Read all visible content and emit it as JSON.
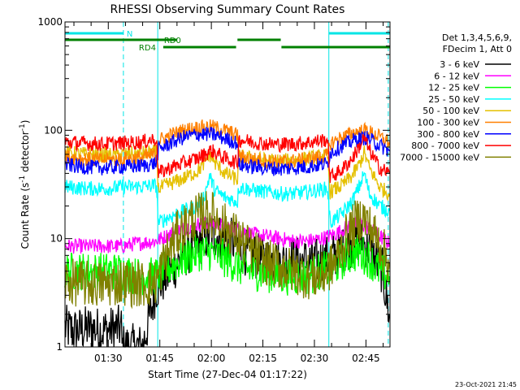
{
  "chart_data": {
    "type": "line",
    "title": "RHESSI Observing Summary Count Rates",
    "xlabel": "Start Time (27-Dec-04 01:17:22)",
    "ylabel_main": "Count Rate (s",
    "ylabel_sup1": "-1",
    "ylabel_mid": " detector",
    "ylabel_sup2": "-1",
    "ylabel_end": ")",
    "y_scale": "log",
    "ylim": [
      1,
      1000
    ],
    "xlim_minutes": [
      77.4,
      172.0
    ],
    "x_ticks": [
      {
        "minute": 90,
        "label": "01:30"
      },
      {
        "minute": 105,
        "label": "01:45"
      },
      {
        "minute": 120,
        "label": "02:00"
      },
      {
        "minute": 135,
        "label": "02:15"
      },
      {
        "minute": 150,
        "label": "02:30"
      },
      {
        "minute": 165,
        "label": "02:45"
      }
    ],
    "y_ticks": [
      {
        "value": 1,
        "label": "1"
      },
      {
        "value": 10,
        "label": "10"
      },
      {
        "value": 100,
        "label": "100"
      },
      {
        "value": 1000,
        "label": "1000"
      }
    ],
    "legend_header": [
      "Det 1,3,4,5,6,9,",
      "FDecim 1, Att 0"
    ],
    "legend_placement": "right",
    "footer_timestamp": "23-Oct-2021 21:45",
    "colors": {
      "axis": "#000000",
      "night": "#00e5e5",
      "saa": "#008000"
    },
    "intervals": {
      "night": [
        {
          "label": "N",
          "start": 77.4,
          "end": 94.4
        },
        {
          "label": "",
          "start": 154.2,
          "end": 172.0
        }
      ],
      "rd0": [
        {
          "label": "RD0",
          "start": 77.4,
          "end": 110.0
        },
        {
          "label": "",
          "start": 127.6,
          "end": 140.2
        }
      ],
      "rd4": [
        {
          "label": "RD4",
          "start": 106.0,
          "end": 127.2
        },
        {
          "label": "",
          "start": 140.4,
          "end": 172.0
        }
      ]
    },
    "vlines": [
      {
        "minute": 77.4,
        "style": "solid"
      },
      {
        "minute": 94.4,
        "style": "dashed"
      },
      {
        "minute": 104.4,
        "style": "solid"
      },
      {
        "minute": 154.2,
        "style": "solid"
      },
      {
        "minute": 171.5,
        "style": "dashed"
      }
    ],
    "series": [
      {
        "name": "3 - 6 keV",
        "color": "#000000",
        "x": [
          77.4,
          80,
          85,
          88,
          93.8,
          94.0,
          96,
          100,
          104,
          107,
          112,
          116,
          120,
          124,
          127.6,
          128,
          132,
          136,
          140,
          144,
          149,
          153.8,
          156,
          159,
          163,
          166,
          169.8,
          170.8,
          171.8
        ],
        "y": [
          1.5,
          1.4,
          1.5,
          1.4,
          1.5,
          1,
          1,
          1,
          3.5,
          4.5,
          7,
          9,
          11,
          10,
          9,
          8,
          7,
          6.5,
          6,
          6.5,
          6,
          6.5,
          7,
          8,
          10,
          8,
          5,
          3,
          2
        ]
      },
      {
        "name": "6 - 12 keV",
        "color": "#ff00ff",
        "x": [
          77.4,
          84,
          90,
          94,
          98,
          104,
          108,
          112,
          116,
          120,
          124,
          128,
          132,
          136,
          140,
          144,
          148,
          152,
          156,
          160,
          163,
          166,
          169,
          171.8
        ],
        "y": [
          8.5,
          8.5,
          8.5,
          8.5,
          9,
          9.5,
          11,
          12.5,
          13.5,
          14,
          13,
          12,
          11,
          10.5,
          10,
          9.5,
          9.5,
          10,
          11,
          13,
          14,
          12.5,
          10.5,
          9
        ]
      },
      {
        "name": "12 - 25 keV",
        "color": "#00ff00",
        "x": [
          77.4,
          84,
          90,
          94,
          98,
          104,
          108,
          112,
          116,
          120,
          124,
          128,
          132,
          136,
          140,
          144,
          148,
          152,
          156,
          160,
          163,
          166,
          169,
          171.8
        ],
        "y": [
          5,
          5,
          5,
          5,
          4.5,
          4.5,
          5.5,
          6.5,
          7.5,
          7.5,
          6.5,
          5.5,
          5,
          4.8,
          4.5,
          4.5,
          4.5,
          5,
          5.5,
          7,
          7.5,
          6.5,
          5,
          4.5
        ]
      },
      {
        "name": "25 - 50 keV",
        "color": "#00ffff",
        "x": [
          77.4,
          84,
          90,
          94,
          98,
          104,
          104.6,
          108,
          112,
          116,
          118,
          119.5,
          121,
          124,
          127.6,
          128,
          132,
          136,
          140,
          144,
          148,
          153.8,
          154.6,
          158,
          161,
          163,
          164.5,
          166,
          169,
          171.8
        ],
        "y": [
          30,
          29,
          29,
          30,
          30,
          31,
          14,
          16,
          18,
          20,
          25,
          38,
          28,
          24,
          22,
          30,
          28,
          27,
          26,
          26,
          27,
          29,
          14,
          17,
          22,
          30,
          40,
          26,
          20,
          18
        ]
      },
      {
        "name": "50 - 100 keV",
        "color": "#e5c000",
        "x": [
          77.4,
          84,
          90,
          94,
          98,
          104,
          104.6,
          108,
          112,
          116,
          118,
          119.5,
          121,
          124,
          127.6,
          128,
          132,
          136,
          140,
          144,
          148,
          153.8,
          154.6,
          158,
          161,
          163,
          164.5,
          166,
          169,
          171.8
        ],
        "y": [
          62,
          60,
          59,
          60,
          61,
          63,
          29,
          32,
          36,
          42,
          50,
          60,
          50,
          40,
          35,
          57,
          55,
          53,
          52,
          53,
          55,
          58,
          27,
          31,
          38,
          48,
          62,
          45,
          30,
          26
        ]
      },
      {
        "name": "100 - 300 keV",
        "color": "#ff8000",
        "x": [
          77.4,
          82,
          88,
          94,
          100,
          104,
          104.6,
          108,
          112,
          116,
          120,
          124,
          127.6,
          128,
          132,
          136,
          140,
          144,
          148,
          153.8,
          154.6,
          158,
          162,
          165,
          168,
          171.8
        ],
        "y": [
          57,
          55,
          53,
          54,
          56,
          60,
          80,
          90,
          100,
          106,
          108,
          100,
          90,
          57,
          54,
          52,
          51,
          52,
          54,
          58,
          76,
          86,
          96,
          100,
          90,
          78
        ]
      },
      {
        "name": "300 - 800 keV",
        "color": "#0000ff",
        "x": [
          77.4,
          82,
          88,
          94,
          100,
          104,
          104.6,
          108,
          112,
          116,
          120,
          124,
          127.6,
          128,
          132,
          136,
          140,
          144,
          148,
          153.8,
          154.6,
          158,
          162,
          165,
          168,
          171.8
        ],
        "y": [
          48,
          46,
          45,
          46,
          47,
          50,
          66,
          76,
          86,
          92,
          92,
          84,
          76,
          48,
          46,
          45,
          44,
          45,
          46,
          49,
          62,
          72,
          82,
          86,
          76,
          64
        ]
      },
      {
        "name": "800 - 7000 keV",
        "color": "#ff0000",
        "x": [
          77.4,
          82,
          88,
          94,
          100,
          104,
          104.6,
          108,
          112,
          116,
          120,
          124,
          127.6,
          128,
          132,
          136,
          140,
          144,
          148,
          153.8,
          154.6,
          158,
          161,
          163,
          164.5,
          166,
          169,
          171.8
        ],
        "y": [
          78,
          76,
          75,
          76,
          78,
          84,
          40,
          45,
          50,
          55,
          65,
          55,
          50,
          82,
          78,
          75,
          74,
          75,
          77,
          82,
          37,
          43,
          55,
          70,
          85,
          65,
          45,
          40
        ]
      },
      {
        "name": "7000 - 15000 keV",
        "color": "#808000",
        "x": [
          77.4,
          84,
          90,
          94,
          98,
          102,
          104,
          106,
          110,
          114,
          118,
          120,
          124,
          128,
          132,
          136,
          140,
          144,
          148,
          152,
          156,
          159,
          162,
          164,
          166,
          169,
          171.8
        ],
        "y": [
          4,
          3.8,
          3.8,
          4,
          3.8,
          3.8,
          4,
          6,
          11,
          15,
          17,
          17,
          13,
          10,
          7.5,
          6,
          5.5,
          5,
          4.5,
          4.5,
          6,
          10,
          14,
          16,
          13,
          9,
          6
        ]
      }
    ]
  }
}
